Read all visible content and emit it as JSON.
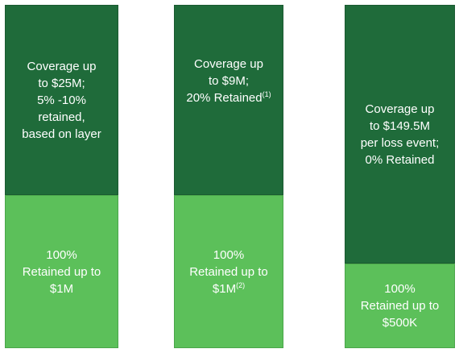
{
  "colors": {
    "coverage_block": "#1f6b3a",
    "retained_block": "#5cc05a",
    "text": "#ffffff"
  },
  "columns": [
    {
      "coverage": {
        "lines": [
          "Coverage up",
          "to $25M;",
          "5% -10%",
          "retained,",
          "based on layer"
        ]
      },
      "retained": {
        "lines": [
          "100%",
          "Retained up to",
          "$1M"
        ]
      }
    },
    {
      "coverage": {
        "lines": [
          "Coverage up",
          "to $9M;",
          "20% Retained"
        ],
        "footnote": "(1)"
      },
      "retained": {
        "lines": [
          "100%",
          "Retained up to",
          "$1M"
        ],
        "footnote": "(2)"
      }
    },
    {
      "coverage": {
        "lines": [
          "Coverage up",
          "to $149.5M",
          "per loss event;",
          "0% Retained"
        ]
      },
      "retained": {
        "lines": [
          "100%",
          "Retained up to",
          "$500K"
        ]
      }
    }
  ]
}
